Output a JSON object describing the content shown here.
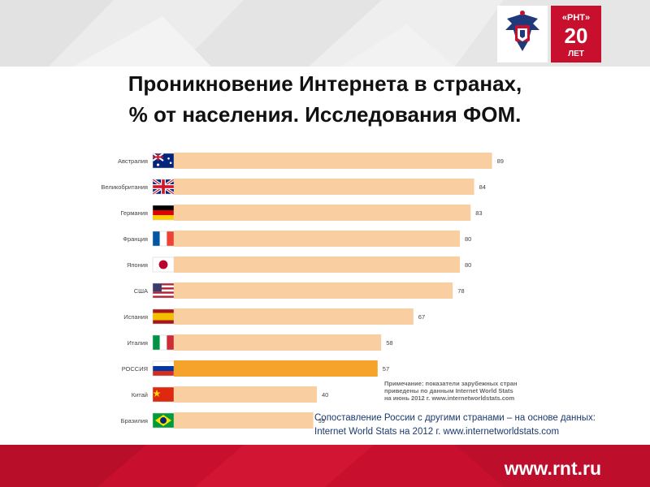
{
  "title": {
    "line1": "Проникновение Интернета в странах,",
    "line2": "% от населения. Исследования ФОМ."
  },
  "logo": {
    "badge_top": "«РНТ»",
    "badge_num": "20",
    "badge_bottom": "ЛЕТ",
    "brand_color": "#1f3a7a",
    "badge_color": "#c8102e"
  },
  "chart_data": {
    "type": "bar",
    "orientation": "horizontal",
    "categories": [
      "Австралия",
      "Великобритания",
      "Германия",
      "Франция",
      "Япония",
      "США",
      "Испания",
      "Италия",
      "РОССИЯ",
      "Китай",
      "Бразилия"
    ],
    "values": [
      89,
      84,
      83,
      80,
      80,
      78,
      67,
      58,
      57,
      40,
      39
    ],
    "flags": [
      "australia-flag-icon",
      "uk-flag-icon",
      "germany-flag-icon",
      "france-flag-icon",
      "japan-flag-icon",
      "usa-flag-icon",
      "spain-flag-icon",
      "italy-flag-icon",
      "russia-flag-icon",
      "china-flag-icon",
      "brazil-flag-icon"
    ],
    "highlight": "РОССИЯ",
    "bar_color": "#f9cfa1",
    "highlight_color": "#f5a32a",
    "xlim": [
      0,
      100
    ],
    "grid": false
  },
  "note": {
    "line1": "Примечание: показатели зарубежных стран",
    "line2": "приведены по данным Internet World Stats",
    "line3": "на июнь 2012 г. www.internetworldstats.com"
  },
  "caption": {
    "line1": "Сопоставление России с другими странами – на основе данных:",
    "line2": "Internet World Stats на 2012 г. www.internetworldstats.com"
  },
  "footer": {
    "url": "www.rnt.ru",
    "color": "#c8102e"
  }
}
